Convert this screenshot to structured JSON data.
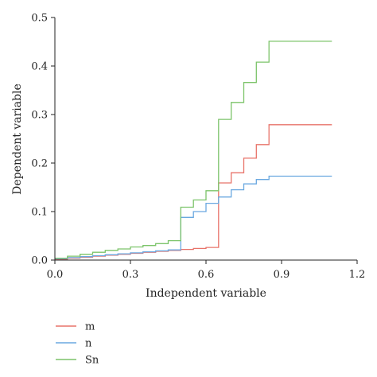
{
  "chart_data": {
    "type": "line",
    "step": true,
    "xlabel": "Independent variable",
    "ylabel": "Dependent variable",
    "xlim": [
      0,
      1.2
    ],
    "ylim": [
      0,
      0.5
    ],
    "xticks": [
      "0.0",
      "0.3",
      "0.6",
      "0.9",
      "1.2"
    ],
    "yticks": [
      "0.0",
      "0.1",
      "0.2",
      "0.3",
      "0.4",
      "0.5"
    ],
    "grid": false,
    "legend_position": "bottom-left",
    "series": [
      {
        "name": "m",
        "color": "#e8736a",
        "x": [
          0.0,
          0.05,
          0.1,
          0.15,
          0.2,
          0.25,
          0.3,
          0.35,
          0.4,
          0.45,
          0.5,
          0.55,
          0.6,
          0.65,
          0.7,
          0.75,
          0.8,
          0.85,
          1.1
        ],
        "y": [
          0.002,
          0.004,
          0.006,
          0.008,
          0.01,
          0.012,
          0.014,
          0.016,
          0.018,
          0.02,
          0.022,
          0.024,
          0.026,
          0.159,
          0.18,
          0.21,
          0.238,
          0.279,
          0.279
        ]
      },
      {
        "name": "n",
        "color": "#6aa8e0",
        "x": [
          0.0,
          0.05,
          0.1,
          0.15,
          0.2,
          0.25,
          0.3,
          0.35,
          0.4,
          0.45,
          0.5,
          0.55,
          0.6,
          0.65,
          0.7,
          0.75,
          0.8,
          0.85,
          1.1
        ],
        "y": [
          0.003,
          0.005,
          0.007,
          0.009,
          0.011,
          0.013,
          0.015,
          0.017,
          0.019,
          0.021,
          0.088,
          0.1,
          0.117,
          0.13,
          0.145,
          0.157,
          0.166,
          0.173,
          0.173
        ]
      },
      {
        "name": "Sn",
        "color": "#7cc46a",
        "x": [
          0.0,
          0.05,
          0.1,
          0.15,
          0.2,
          0.25,
          0.3,
          0.35,
          0.4,
          0.45,
          0.5,
          0.55,
          0.6,
          0.65,
          0.7,
          0.75,
          0.8,
          0.85,
          1.1
        ],
        "y": [
          0.004,
          0.008,
          0.012,
          0.016,
          0.02,
          0.023,
          0.027,
          0.03,
          0.034,
          0.04,
          0.109,
          0.124,
          0.143,
          0.29,
          0.325,
          0.366,
          0.408,
          0.451,
          0.451
        ]
      }
    ]
  }
}
